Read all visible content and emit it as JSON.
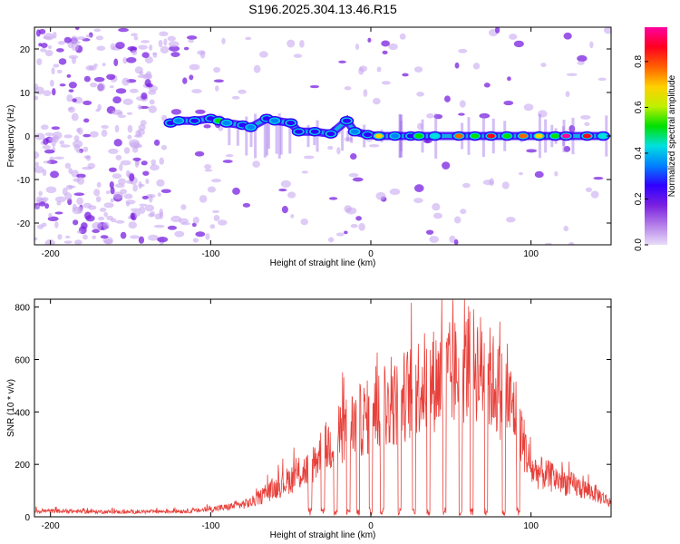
{
  "title": "S196.2025.304.13.46.R15",
  "chart_data": [
    {
      "type": "heatmap",
      "xlabel": "Height of straight line (km)",
      "ylabel": "Frequency (Hz)",
      "xlim": [
        -210,
        150
      ],
      "ylim": [
        -25,
        25
      ],
      "xticks": [
        -200,
        -100,
        0,
        100
      ],
      "yticks": [
        -20,
        -10,
        0,
        10,
        20
      ],
      "colorbar": {
        "label": "Normalized spectral amplitude",
        "range": [
          0,
          0.95
        ],
        "ticks": [
          0.0,
          0.2,
          0.4,
          0.6,
          0.8
        ],
        "colors": [
          "#e8dcf8",
          "#b47ee8",
          "#7a20e0",
          "#3000ff",
          "#0080ff",
          "#00e0e0",
          "#00e000",
          "#c0f000",
          "#ffd000",
          "#ff6000",
          "#ff0020",
          "#ff00a0"
        ]
      },
      "ridge": [
        {
          "x": -125,
          "y": 3.0,
          "a": 0.3
        },
        {
          "x": -120,
          "y": 3.5,
          "a": 0.35
        },
        {
          "x": -110,
          "y": 3.5,
          "a": 0.3
        },
        {
          "x": -100,
          "y": 4.0,
          "a": 0.25
        },
        {
          "x": -95,
          "y": 3.5,
          "a": 0.5
        },
        {
          "x": -90,
          "y": 3.0,
          "a": 0.35
        },
        {
          "x": -80,
          "y": 2.5,
          "a": 0.3
        },
        {
          "x": -75,
          "y": 2.0,
          "a": 0.35
        },
        {
          "x": -65,
          "y": 4.0,
          "a": 0.3
        },
        {
          "x": -60,
          "y": 3.5,
          "a": 0.35
        },
        {
          "x": -50,
          "y": 3.0,
          "a": 0.3
        },
        {
          "x": -45,
          "y": 1.0,
          "a": 0.25
        },
        {
          "x": -35,
          "y": 1.0,
          "a": 0.3
        },
        {
          "x": -25,
          "y": 0.5,
          "a": 0.3
        },
        {
          "x": -15,
          "y": 3.5,
          "a": 0.25
        },
        {
          "x": -10,
          "y": 1.0,
          "a": 0.35
        },
        {
          "x": -2,
          "y": 0.3,
          "a": 0.3
        },
        {
          "x": 5,
          "y": 0.0,
          "a": 0.7
        },
        {
          "x": 15,
          "y": 0.0,
          "a": 0.35
        },
        {
          "x": 25,
          "y": 0.0,
          "a": 0.3
        },
        {
          "x": 30,
          "y": 0.0,
          "a": 0.55
        },
        {
          "x": 40,
          "y": 0.0,
          "a": 0.45
        },
        {
          "x": 55,
          "y": 0.0,
          "a": 0.75
        },
        {
          "x": 65,
          "y": 0.0,
          "a": 0.5
        },
        {
          "x": 75,
          "y": 0.0,
          "a": 0.9
        },
        {
          "x": 85,
          "y": 0.0,
          "a": 0.55
        },
        {
          "x": 95,
          "y": 0.0,
          "a": 0.8
        },
        {
          "x": 105,
          "y": 0.0,
          "a": 0.7
        },
        {
          "x": 115,
          "y": 0.0,
          "a": 0.55
        },
        {
          "x": 122,
          "y": 0.0,
          "a": 0.95
        },
        {
          "x": 135,
          "y": 0.0,
          "a": 0.85
        },
        {
          "x": 145,
          "y": 0.0,
          "a": 0.4
        }
      ]
    },
    {
      "type": "line",
      "xlabel": "Height of straight line (km)",
      "ylabel": "SNR (10 * v/v)",
      "xlim": [
        -210,
        150
      ],
      "ylim": [
        0,
        830
      ],
      "xticks": [
        -200,
        -100,
        0,
        100
      ],
      "yticks": [
        0,
        200,
        400,
        600,
        800
      ],
      "color": "#e8403a",
      "envelope": [
        {
          "x": -210,
          "y": 25
        },
        {
          "x": -150,
          "y": 20
        },
        {
          "x": -110,
          "y": 25
        },
        {
          "x": -90,
          "y": 40
        },
        {
          "x": -75,
          "y": 60
        },
        {
          "x": -60,
          "y": 120
        },
        {
          "x": -40,
          "y": 200
        },
        {
          "x": -30,
          "y": 280
        },
        {
          "x": -10,
          "y": 400
        },
        {
          "x": 10,
          "y": 450
        },
        {
          "x": 30,
          "y": 560
        },
        {
          "x": 50,
          "y": 600
        },
        {
          "x": 65,
          "y": 650
        },
        {
          "x": 75,
          "y": 580
        },
        {
          "x": 90,
          "y": 450
        },
        {
          "x": 100,
          "y": 200
        },
        {
          "x": 120,
          "y": 150
        },
        {
          "x": 140,
          "y": 100
        },
        {
          "x": 150,
          "y": 60
        }
      ],
      "dropouts": [
        -38,
        -30,
        -22,
        -14,
        -8,
        0,
        7,
        18,
        27,
        36,
        46,
        56,
        63,
        72,
        83,
        92
      ]
    }
  ]
}
